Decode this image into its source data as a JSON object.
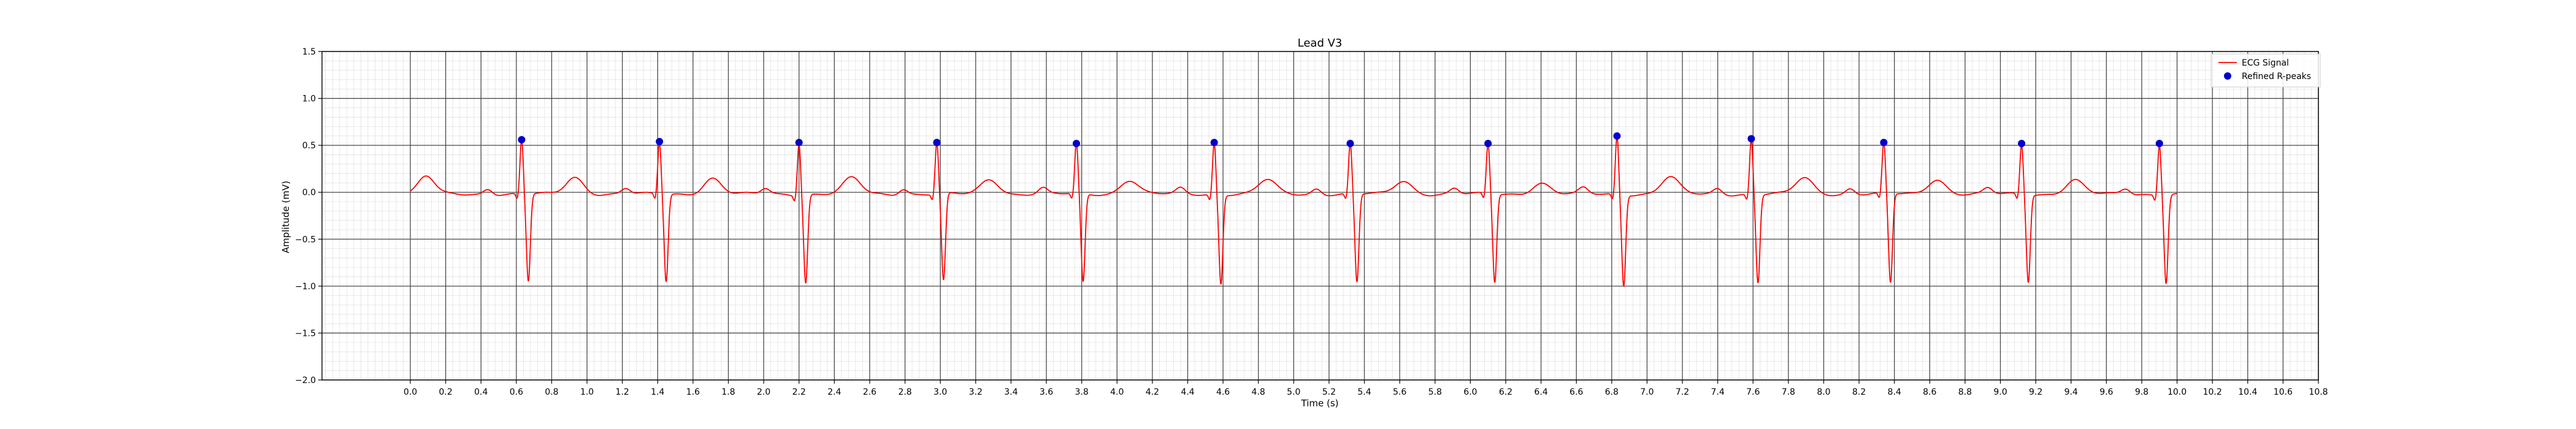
{
  "chart_data": {
    "type": "line",
    "title": "Lead V3",
    "xlabel": "Time (s)",
    "ylabel": "Amplitude (mV)",
    "xlim": [
      -0.5,
      10.8
    ],
    "ylim": [
      -2.0,
      1.5
    ],
    "xticks": [
      "0.0",
      "0.2",
      "0.4",
      "0.6",
      "0.8",
      "1.0",
      "1.2",
      "1.4",
      "1.6",
      "1.8",
      "2.0",
      "2.2",
      "2.4",
      "2.6",
      "2.8",
      "3.0",
      "3.2",
      "3.4",
      "3.6",
      "3.8",
      "4.0",
      "4.2",
      "4.4",
      "4.6",
      "4.8",
      "5.0",
      "5.2",
      "5.4",
      "5.6",
      "5.8",
      "6.0",
      "6.2",
      "6.4",
      "6.6",
      "6.8",
      "7.0",
      "7.2",
      "7.4",
      "7.6",
      "7.8",
      "8.0",
      "8.2",
      "8.4",
      "8.6",
      "8.8",
      "9.0",
      "9.2",
      "9.4",
      "9.6",
      "9.8",
      "10.0",
      "10.2",
      "10.4",
      "10.6",
      "10.8"
    ],
    "yticks": [
      "1.5",
      "1.0",
      "0.5",
      "0.0",
      "−0.5",
      "−1.0",
      "−1.5",
      "−2.0"
    ],
    "grid": true,
    "legend_position": "top-right",
    "duration_s": 10.0,
    "baseline_mV": -0.02,
    "series": [
      {
        "name": "ECG Signal",
        "kind": "line",
        "color": "#ff0000",
        "beats": [
          {
            "r_time": 0.63,
            "r_amp": 0.56,
            "s_amp": -0.93,
            "t_amp": 0.18
          },
          {
            "r_time": 1.41,
            "r_amp": 0.54,
            "s_amp": -0.93,
            "t_amp": 0.17
          },
          {
            "r_time": 2.2,
            "r_amp": 0.53,
            "s_amp": -0.94,
            "t_amp": 0.17
          },
          {
            "r_time": 2.98,
            "r_amp": 0.53,
            "s_amp": -0.93,
            "t_amp": 0.16
          },
          {
            "r_time": 3.77,
            "r_amp": 0.52,
            "s_amp": -0.94,
            "t_amp": 0.15
          },
          {
            "r_time": 4.55,
            "r_amp": 0.53,
            "s_amp": -0.95,
            "t_amp": 0.15
          },
          {
            "r_time": 5.32,
            "r_amp": 0.52,
            "s_amp": -0.94,
            "t_amp": 0.14
          },
          {
            "r_time": 6.1,
            "r_amp": 0.52,
            "s_amp": -0.94,
            "t_amp": 0.12
          },
          {
            "r_time": 6.83,
            "r_amp": 0.6,
            "s_amp": -0.97,
            "t_amp": 0.18
          },
          {
            "r_time": 7.59,
            "r_amp": 0.57,
            "s_amp": -0.94,
            "t_amp": 0.17
          },
          {
            "r_time": 8.34,
            "r_amp": 0.53,
            "s_amp": -0.95,
            "t_amp": 0.16
          },
          {
            "r_time": 9.12,
            "r_amp": 0.52,
            "s_amp": -0.93,
            "t_amp": 0.15
          },
          {
            "r_time": 9.9,
            "r_amp": 0.52,
            "s_amp": -0.94,
            "t_amp": 0.14
          }
        ]
      },
      {
        "name": "Refined R-peaks",
        "kind": "scatter",
        "color": "#0000cc",
        "x": [
          0.63,
          1.41,
          2.2,
          2.98,
          3.77,
          4.55,
          5.32,
          6.1,
          6.83,
          7.59,
          8.34,
          9.12,
          9.9
        ],
        "y": [
          0.56,
          0.54,
          0.53,
          0.53,
          0.52,
          0.53,
          0.52,
          0.52,
          0.6,
          0.57,
          0.53,
          0.52,
          0.52
        ]
      }
    ]
  }
}
